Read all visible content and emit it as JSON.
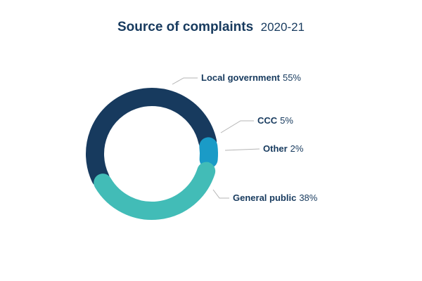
{
  "chart_data": {
    "type": "pie",
    "style": "donut",
    "title": "Source of complaints",
    "subtitle": "2020-21",
    "slices": [
      {
        "label": "Local government",
        "value": 55,
        "value_text": "55%",
        "color": "#173a5e"
      },
      {
        "label": "CCC",
        "value": 5,
        "value_text": "5%",
        "color": "#1a9bc7"
      },
      {
        "label": "Other",
        "value": 2,
        "value_text": "2%",
        "color": "#2fd6c2"
      },
      {
        "label": "General public",
        "value": 38,
        "value_text": "38%",
        "color": "#42bcb7"
      }
    ],
    "colors": {
      "title": "#173a5e",
      "label_text": "#173a5e",
      "leader_line": "#b5b5b5"
    }
  }
}
